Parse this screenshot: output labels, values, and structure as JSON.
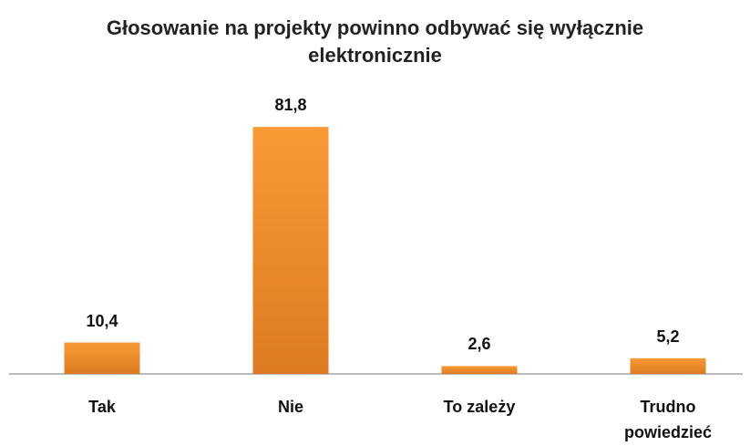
{
  "chart_data": {
    "type": "bar",
    "title": "Głosowanie na projekty powinno odbywać się wyłącznie elektronicznie",
    "categories": [
      "Tak",
      "Nie",
      "To zależy",
      "Trudno powiedzieć"
    ],
    "values": [
      10.4,
      81.8,
      2.6,
      5.2
    ],
    "value_labels": [
      "10,4",
      "81,8",
      "2,6",
      "5,2"
    ],
    "color": "#f4892a",
    "ylim": [
      0,
      90
    ]
  }
}
